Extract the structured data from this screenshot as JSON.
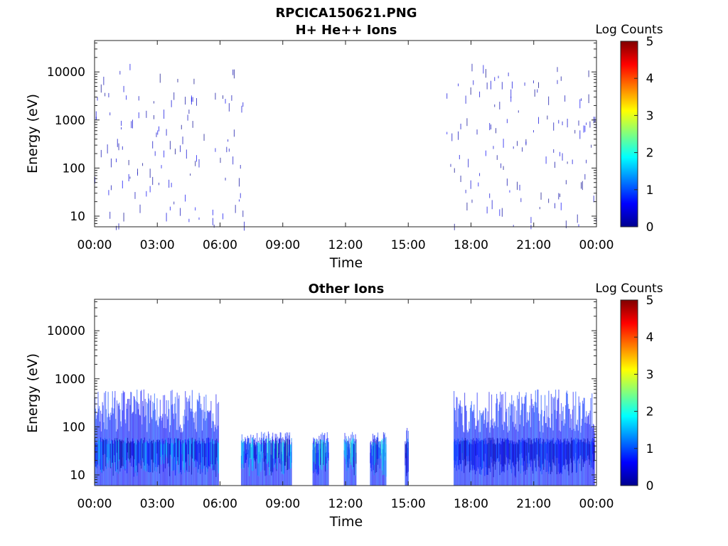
{
  "figure_title": "RPCICA150621.PNG",
  "chart_data": [
    {
      "type": "heatmap",
      "title": "H+ He++ Ions",
      "xlabel": "Time",
      "ylabel": "Energy (eV)",
      "y_scale": "log",
      "ylim": [
        6,
        45000
      ],
      "xlim_hours": [
        0,
        24
      ],
      "x_tick_labels": [
        "00:00",
        "03:00",
        "06:00",
        "09:00",
        "12:00",
        "15:00",
        "18:00",
        "21:00",
        "00:00"
      ],
      "y_tick_labels": [
        "10",
        "100",
        "1000",
        "10000"
      ],
      "y_tick_values": [
        10,
        100,
        1000,
        10000
      ],
      "colorbar": {
        "label": "Log Counts",
        "range": [
          0,
          5
        ],
        "ticks": [
          "0",
          "1",
          "2",
          "3",
          "4",
          "5"
        ]
      },
      "data_intervals": [
        {
          "start": "00:00",
          "end": "07:10",
          "energy_range_eV": [
            6,
            15000
          ],
          "log_counts": [
            0,
            1
          ],
          "note": "sparse"
        },
        {
          "start": "16:50",
          "end": "24:00",
          "energy_range_eV": [
            6,
            15000
          ],
          "log_counts": [
            0,
            1
          ],
          "note": "sparse"
        }
      ]
    },
    {
      "type": "heatmap",
      "title": "Other Ions",
      "xlabel": "Time",
      "ylabel": "Energy (eV)",
      "y_scale": "log",
      "ylim": [
        6,
        45000
      ],
      "xlim_hours": [
        0,
        24
      ],
      "x_tick_labels": [
        "00:00",
        "03:00",
        "06:00",
        "09:00",
        "12:00",
        "15:00",
        "18:00",
        "21:00",
        "00:00"
      ],
      "y_tick_labels": [
        "10",
        "100",
        "1000",
        "10000"
      ],
      "y_tick_values": [
        10,
        100,
        1000,
        10000
      ],
      "colorbar": {
        "label": "Log Counts",
        "range": [
          0,
          5
        ],
        "ticks": [
          "0",
          "1",
          "2",
          "3",
          "4",
          "5"
        ]
      },
      "data_intervals": [
        {
          "start": "00:00",
          "end": "05:55",
          "energy_range_eV": [
            6,
            600
          ],
          "log_counts": [
            0,
            1.8
          ]
        },
        {
          "start": "07:00",
          "end": "09:25",
          "energy_range_eV": [
            6,
            80
          ],
          "log_counts": [
            0,
            2.3
          ]
        },
        {
          "start": "10:25",
          "end": "11:10",
          "energy_range_eV": [
            6,
            80
          ],
          "log_counts": [
            0,
            2.2
          ]
        },
        {
          "start": "11:55",
          "end": "12:30",
          "energy_range_eV": [
            6,
            80
          ],
          "log_counts": [
            0,
            2.3
          ]
        },
        {
          "start": "13:10",
          "end": "13:55",
          "energy_range_eV": [
            6,
            80
          ],
          "log_counts": [
            0,
            2.2
          ]
        },
        {
          "start": "14:50",
          "end": "15:00",
          "energy_range_eV": [
            6,
            100
          ],
          "log_counts": [
            0,
            1.5
          ]
        },
        {
          "start": "17:10",
          "end": "23:55",
          "energy_range_eV": [
            6,
            600
          ],
          "log_counts": [
            0,
            1.2
          ]
        }
      ]
    }
  ]
}
